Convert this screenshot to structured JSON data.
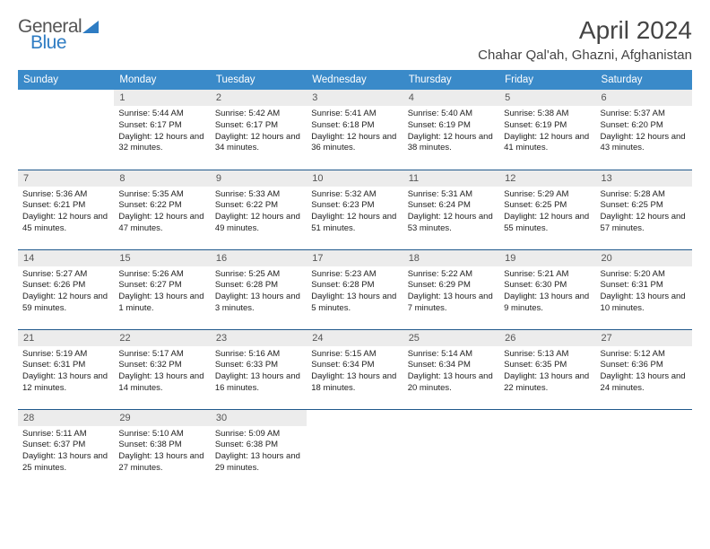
{
  "brand": {
    "part1": "General",
    "part2": "Blue"
  },
  "title": "April 2024",
  "location": "Chahar Qal'ah, Ghazni, Afghanistan",
  "styling": {
    "header_bg": "#3a8ac9",
    "header_fg": "#ffffff",
    "border_color": "#20598c",
    "daynum_bg": "#ececec",
    "daynum_fg": "#555555",
    "text_color": "#222222",
    "brand_gray": "#555555",
    "brand_blue": "#2e7cc3",
    "font_family": "Arial, Helvetica, sans-serif",
    "header_font_size": 11.5,
    "cell_font_size": 9.5
  },
  "weekdays": [
    "Sunday",
    "Monday",
    "Tuesday",
    "Wednesday",
    "Thursday",
    "Friday",
    "Saturday"
  ],
  "weeks": [
    [
      null,
      {
        "n": "1",
        "sr": "5:44 AM",
        "ss": "6:17 PM",
        "dl": "12 hours and 32 minutes."
      },
      {
        "n": "2",
        "sr": "5:42 AM",
        "ss": "6:17 PM",
        "dl": "12 hours and 34 minutes."
      },
      {
        "n": "3",
        "sr": "5:41 AM",
        "ss": "6:18 PM",
        "dl": "12 hours and 36 minutes."
      },
      {
        "n": "4",
        "sr": "5:40 AM",
        "ss": "6:19 PM",
        "dl": "12 hours and 38 minutes."
      },
      {
        "n": "5",
        "sr": "5:38 AM",
        "ss": "6:19 PM",
        "dl": "12 hours and 41 minutes."
      },
      {
        "n": "6",
        "sr": "5:37 AM",
        "ss": "6:20 PM",
        "dl": "12 hours and 43 minutes."
      }
    ],
    [
      {
        "n": "7",
        "sr": "5:36 AM",
        "ss": "6:21 PM",
        "dl": "12 hours and 45 minutes."
      },
      {
        "n": "8",
        "sr": "5:35 AM",
        "ss": "6:22 PM",
        "dl": "12 hours and 47 minutes."
      },
      {
        "n": "9",
        "sr": "5:33 AM",
        "ss": "6:22 PM",
        "dl": "12 hours and 49 minutes."
      },
      {
        "n": "10",
        "sr": "5:32 AM",
        "ss": "6:23 PM",
        "dl": "12 hours and 51 minutes."
      },
      {
        "n": "11",
        "sr": "5:31 AM",
        "ss": "6:24 PM",
        "dl": "12 hours and 53 minutes."
      },
      {
        "n": "12",
        "sr": "5:29 AM",
        "ss": "6:25 PM",
        "dl": "12 hours and 55 minutes."
      },
      {
        "n": "13",
        "sr": "5:28 AM",
        "ss": "6:25 PM",
        "dl": "12 hours and 57 minutes."
      }
    ],
    [
      {
        "n": "14",
        "sr": "5:27 AM",
        "ss": "6:26 PM",
        "dl": "12 hours and 59 minutes."
      },
      {
        "n": "15",
        "sr": "5:26 AM",
        "ss": "6:27 PM",
        "dl": "13 hours and 1 minute."
      },
      {
        "n": "16",
        "sr": "5:25 AM",
        "ss": "6:28 PM",
        "dl": "13 hours and 3 minutes."
      },
      {
        "n": "17",
        "sr": "5:23 AM",
        "ss": "6:28 PM",
        "dl": "13 hours and 5 minutes."
      },
      {
        "n": "18",
        "sr": "5:22 AM",
        "ss": "6:29 PM",
        "dl": "13 hours and 7 minutes."
      },
      {
        "n": "19",
        "sr": "5:21 AM",
        "ss": "6:30 PM",
        "dl": "13 hours and 9 minutes."
      },
      {
        "n": "20",
        "sr": "5:20 AM",
        "ss": "6:31 PM",
        "dl": "13 hours and 10 minutes."
      }
    ],
    [
      {
        "n": "21",
        "sr": "5:19 AM",
        "ss": "6:31 PM",
        "dl": "13 hours and 12 minutes."
      },
      {
        "n": "22",
        "sr": "5:17 AM",
        "ss": "6:32 PM",
        "dl": "13 hours and 14 minutes."
      },
      {
        "n": "23",
        "sr": "5:16 AM",
        "ss": "6:33 PM",
        "dl": "13 hours and 16 minutes."
      },
      {
        "n": "24",
        "sr": "5:15 AM",
        "ss": "6:34 PM",
        "dl": "13 hours and 18 minutes."
      },
      {
        "n": "25",
        "sr": "5:14 AM",
        "ss": "6:34 PM",
        "dl": "13 hours and 20 minutes."
      },
      {
        "n": "26",
        "sr": "5:13 AM",
        "ss": "6:35 PM",
        "dl": "13 hours and 22 minutes."
      },
      {
        "n": "27",
        "sr": "5:12 AM",
        "ss": "6:36 PM",
        "dl": "13 hours and 24 minutes."
      }
    ],
    [
      {
        "n": "28",
        "sr": "5:11 AM",
        "ss": "6:37 PM",
        "dl": "13 hours and 25 minutes."
      },
      {
        "n": "29",
        "sr": "5:10 AM",
        "ss": "6:38 PM",
        "dl": "13 hours and 27 minutes."
      },
      {
        "n": "30",
        "sr": "5:09 AM",
        "ss": "6:38 PM",
        "dl": "13 hours and 29 minutes."
      },
      null,
      null,
      null,
      null
    ]
  ],
  "labels": {
    "sunrise": "Sunrise:",
    "sunset": "Sunset:",
    "daylight": "Daylight:"
  }
}
